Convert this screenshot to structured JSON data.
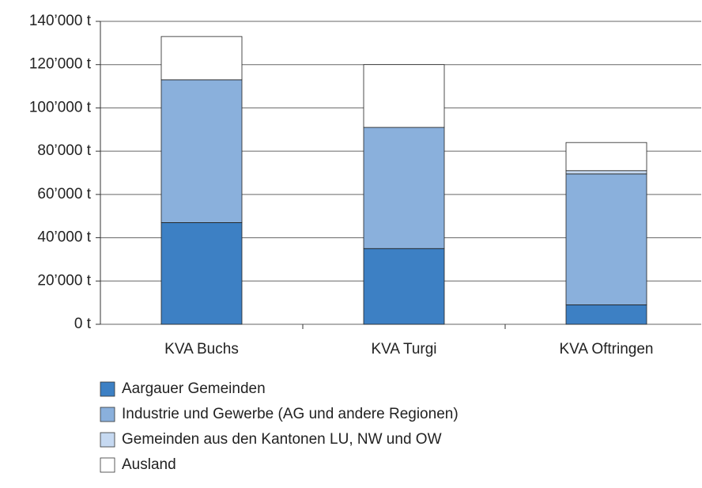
{
  "chart_data": {
    "type": "stacked_bar",
    "categories": [
      "KVA Buchs",
      "KVA Turgi",
      "KVA Oftringen"
    ],
    "series": [
      {
        "name": "Aargauer Gemeinden",
        "color": "#3d80c4",
        "values": [
          47000,
          35000,
          9000
        ]
      },
      {
        "name": "Industrie und Gewerbe (AG und andere Regionen)",
        "color": "#8ab0dc",
        "values": [
          66000,
          56000,
          60500
        ]
      },
      {
        "name": "Gemeinden aus den Kantonen LU, NW und OW",
        "color": "#c6d9f1",
        "values": [
          0,
          0,
          1500
        ]
      },
      {
        "name": "Ausland",
        "color": "#ffffff",
        "values": [
          20000,
          29000,
          13000
        ]
      }
    ],
    "ylim": [
      0,
      140000
    ],
    "yticks": [
      {
        "value": 0,
        "label": "0 t"
      },
      {
        "value": 20000,
        "label": "20’000 t"
      },
      {
        "value": 40000,
        "label": "40’000 t"
      },
      {
        "value": 60000,
        "label": "60’000 t"
      },
      {
        "value": 80000,
        "label": "80’000 t"
      },
      {
        "value": 100000,
        "label": "100’000 t"
      },
      {
        "value": 120000,
        "label": "120’000 t"
      },
      {
        "value": 140000,
        "label": "140’000 t"
      }
    ],
    "grid": true,
    "legend": "bottom"
  }
}
